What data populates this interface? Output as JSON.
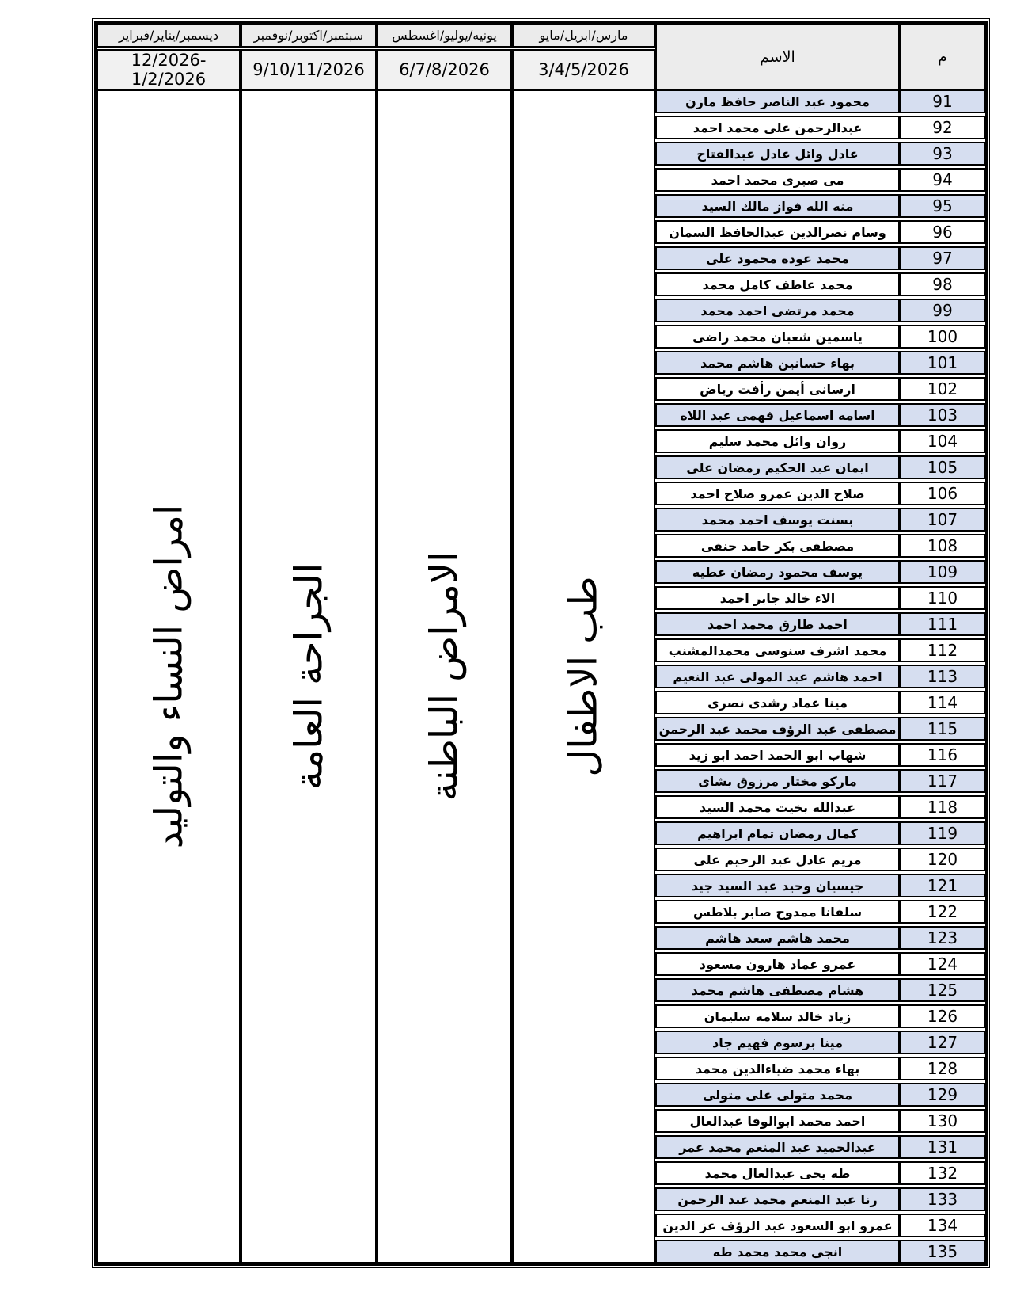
{
  "table": {
    "header": {
      "num_col": "م",
      "name_col": "الاسم",
      "periods": [
        {
          "months": "مارس/ابريل/مايو",
          "dates": "3/4/5/2026",
          "specialty": "طب الاطفال"
        },
        {
          "months": "يونيه/يوليو/اغسطس",
          "dates": "6/7/8/2026",
          "specialty": "الامراض الباطنة"
        },
        {
          "months": "سبتمبر/اكتوبر/نوفمبر",
          "dates": "9/10/11/2026",
          "specialty": "الجراحة العامة"
        },
        {
          "months": "ديسمبر/يناير/فبراير",
          "dates": "12/2026-1/2/2026",
          "specialty": "امراض النساء والتوليد"
        }
      ]
    },
    "rows": [
      {
        "num": "91",
        "name": "محمود عبد الناصر حافظ مازن"
      },
      {
        "num": "92",
        "name": "عبدالرحمن على محمد احمد"
      },
      {
        "num": "93",
        "name": "عادل وائل عادل عبدالفتاح"
      },
      {
        "num": "94",
        "name": "مى صبرى محمد احمد"
      },
      {
        "num": "95",
        "name": "منه الله فواز مالك السيد"
      },
      {
        "num": "96",
        "name": "وسام نصرالدين عبدالحافظ السمان"
      },
      {
        "num": "97",
        "name": "محمد عوده محمود على"
      },
      {
        "num": "98",
        "name": "محمد عاطف كامل محمد"
      },
      {
        "num": "99",
        "name": "محمد مرتضى احمد محمد"
      },
      {
        "num": "100",
        "name": "ياسمين شعبان محمد راضى"
      },
      {
        "num": "101",
        "name": "بهاء حسانين هاشم محمد"
      },
      {
        "num": "102",
        "name": "ارسانى أيمن رأفت رياض"
      },
      {
        "num": "103",
        "name": "اسامه اسماعيل فهمى عبد اللاه"
      },
      {
        "num": "104",
        "name": "روان وائل محمد سليم"
      },
      {
        "num": "105",
        "name": "ايمان عبد الحكيم رمضان على"
      },
      {
        "num": "106",
        "name": "صلاح الدين عمرو صلاح احمد"
      },
      {
        "num": "107",
        "name": "بسنت يوسف احمد محمد"
      },
      {
        "num": "108",
        "name": "مصطفى بكر حامد حنفى"
      },
      {
        "num": "109",
        "name": "يوسف محمود رمضان عطيه"
      },
      {
        "num": "110",
        "name": "الاء خالد جابر احمد"
      },
      {
        "num": "111",
        "name": "احمد طارق محمد احمد"
      },
      {
        "num": "112",
        "name": "محمد اشرف سنوسى محمدالمشنب"
      },
      {
        "num": "113",
        "name": "احمد هاشم عبد المولى عبد النعيم"
      },
      {
        "num": "114",
        "name": "مينا عماد رشدى نصرى"
      },
      {
        "num": "115",
        "name": "مصطفى عبد الرؤف محمد عبد الرحمن"
      },
      {
        "num": "116",
        "name": "شهاب ابو الحمد احمد ابو زيد"
      },
      {
        "num": "117",
        "name": "ماركو مختار مرزوق بشاى"
      },
      {
        "num": "118",
        "name": "عبدالله بخيت محمد السيد"
      },
      {
        "num": "119",
        "name": "كمال رمضان تمام ابراهيم"
      },
      {
        "num": "120",
        "name": "مريم عادل عبد الرحيم على"
      },
      {
        "num": "121",
        "name": "جيسيان وحيد عبد السيد جيد"
      },
      {
        "num": "122",
        "name": "سلفانا ممدوح صابر بلاطس"
      },
      {
        "num": "123",
        "name": "محمد هاشم سعد هاشم"
      },
      {
        "num": "124",
        "name": "عمرو عماد هارون مسعود"
      },
      {
        "num": "125",
        "name": "هشام مصطفى هاشم محمد"
      },
      {
        "num": "126",
        "name": "زياد خالد سلامه سليمان"
      },
      {
        "num": "127",
        "name": "مينا برسوم فهيم جاد"
      },
      {
        "num": "128",
        "name": "بهاء محمد ضياءالدين محمد"
      },
      {
        "num": "129",
        "name": "محمد متولى على متولى"
      },
      {
        "num": "130",
        "name": "احمد محمد ابوالوفا عبدالعال"
      },
      {
        "num": "131",
        "name": "عبدالحميد عبد المنعم محمد عمر"
      },
      {
        "num": "132",
        "name": "طه يحى عبدالعال محمد"
      },
      {
        "num": "133",
        "name": "رنا عبد المنعم محمد عبد الرحمن"
      },
      {
        "num": "134",
        "name": "عمرو ابو السعود عبد الرؤف عز الدين"
      },
      {
        "num": "135",
        "name": "انجي محمد محمد طه"
      }
    ]
  },
  "colors": {
    "row_shade": "#d6def0",
    "header_month_bg": "#ebebeb",
    "header_date_bg": "#f1f1f1",
    "header_label_bg": "#ececec",
    "border": "#000000",
    "page_bg": "#ffffff"
  }
}
